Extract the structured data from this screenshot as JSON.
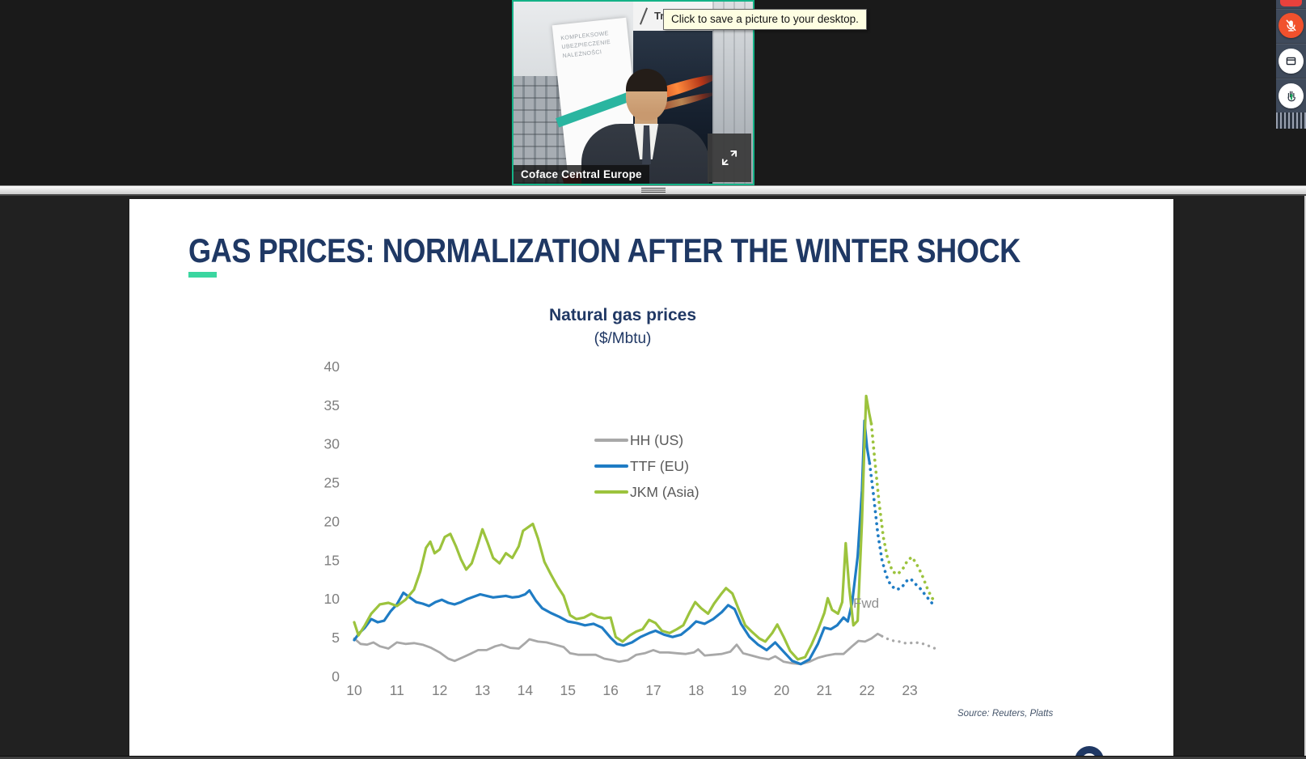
{
  "video": {
    "name_label": "Coface Central Europe",
    "tooltip": "Click to save a picture to your desktop.",
    "poster_heading": "Tra",
    "banner_lines": [
      "KOMPLEKSOWE",
      "UBEZPIECZENIE",
      "NALEŻNOŚCI"
    ],
    "border_color": "#14B287"
  },
  "controls": {
    "mute_color": "#F1512D",
    "raise_hand_arrow_color": "#18A45D"
  },
  "slide": {
    "title": "GAS PRICES: NORMALIZATION AFTER THE WINTER SHOCK",
    "title_color": "#1F3864",
    "accent_color": "#3BD6A0",
    "source": "Source: Reuters, Platts",
    "fwd": "Fwd"
  },
  "chart_data": {
    "type": "line",
    "title": "Natural gas prices",
    "subtitle": "($/Mbtu)",
    "xlabel": "",
    "ylabel": "",
    "ylim": [
      0,
      40
    ],
    "yticks": [
      0,
      5,
      10,
      15,
      20,
      25,
      30,
      35,
      40
    ],
    "xticks": [
      10,
      11,
      12,
      13,
      14,
      15,
      16,
      17,
      18,
      19,
      20,
      21,
      22,
      23
    ],
    "grid": false,
    "legend_position": "center-left",
    "annotation": {
      "text": "Fwd",
      "x": 22.9,
      "y": 9
    },
    "series": [
      {
        "name": "HH (US)",
        "color": "#A8A8A8",
        "width": 2.8,
        "solid": [
          [
            10.0,
            4.9
          ],
          [
            10.15,
            4.2
          ],
          [
            10.3,
            4.1
          ],
          [
            10.45,
            4.4
          ],
          [
            10.6,
            3.9
          ],
          [
            10.8,
            3.6
          ],
          [
            11.0,
            4.4
          ],
          [
            11.2,
            4.2
          ],
          [
            11.4,
            4.3
          ],
          [
            11.6,
            4.1
          ],
          [
            11.8,
            3.7
          ],
          [
            12.0,
            3.1
          ],
          [
            12.2,
            2.3
          ],
          [
            12.35,
            2.0
          ],
          [
            12.55,
            2.5
          ],
          [
            12.75,
            3.0
          ],
          [
            12.9,
            3.4
          ],
          [
            13.1,
            3.4
          ],
          [
            13.3,
            3.9
          ],
          [
            13.45,
            4.1
          ],
          [
            13.65,
            3.7
          ],
          [
            13.85,
            3.6
          ],
          [
            14.0,
            4.3
          ],
          [
            14.1,
            4.8
          ],
          [
            14.3,
            4.5
          ],
          [
            14.5,
            4.4
          ],
          [
            14.7,
            4.1
          ],
          [
            14.9,
            3.8
          ],
          [
            15.05,
            3.0
          ],
          [
            15.25,
            2.8
          ],
          [
            15.45,
            2.8
          ],
          [
            15.65,
            2.8
          ],
          [
            15.85,
            2.3
          ],
          [
            16.05,
            2.1
          ],
          [
            16.2,
            1.9
          ],
          [
            16.4,
            2.1
          ],
          [
            16.6,
            2.8
          ],
          [
            16.8,
            3.0
          ],
          [
            17.0,
            3.4
          ],
          [
            17.15,
            3.1
          ],
          [
            17.35,
            3.1
          ],
          [
            17.55,
            3.0
          ],
          [
            17.75,
            2.9
          ],
          [
            17.95,
            3.1
          ],
          [
            18.05,
            3.5
          ],
          [
            18.2,
            2.7
          ],
          [
            18.4,
            2.8
          ],
          [
            18.6,
            2.9
          ],
          [
            18.8,
            3.2
          ],
          [
            18.95,
            4.1
          ],
          [
            19.1,
            3.0
          ],
          [
            19.3,
            2.7
          ],
          [
            19.5,
            2.4
          ],
          [
            19.7,
            2.2
          ],
          [
            19.85,
            2.6
          ],
          [
            20.05,
            1.9
          ],
          [
            20.25,
            1.7
          ],
          [
            20.45,
            1.6
          ],
          [
            20.65,
            1.9
          ],
          [
            20.85,
            2.4
          ],
          [
            21.05,
            2.7
          ],
          [
            21.25,
            2.9
          ],
          [
            21.45,
            2.9
          ],
          [
            21.65,
            3.9
          ],
          [
            21.8,
            4.6
          ],
          [
            21.95,
            4.5
          ],
          [
            22.1,
            4.9
          ],
          [
            22.25,
            5.5
          ],
          [
            22.35,
            5.2
          ]
        ],
        "forecast": [
          [
            22.35,
            5.2
          ],
          [
            22.5,
            4.8
          ],
          [
            22.62,
            4.6
          ],
          [
            22.75,
            4.5
          ],
          [
            22.88,
            4.3
          ],
          [
            23.0,
            4.3
          ],
          [
            23.12,
            4.4
          ],
          [
            23.25,
            4.3
          ],
          [
            23.38,
            4.1
          ],
          [
            23.5,
            3.8
          ],
          [
            23.6,
            3.6
          ]
        ]
      },
      {
        "name": "TTF (EU)",
        "color": "#1F7CC4",
        "width": 3.2,
        "solid": [
          [
            10.0,
            4.7
          ],
          [
            10.12,
            5.6
          ],
          [
            10.25,
            6.3
          ],
          [
            10.4,
            7.4
          ],
          [
            10.55,
            7.0
          ],
          [
            10.7,
            7.2
          ],
          [
            10.85,
            8.4
          ],
          [
            11.0,
            9.3
          ],
          [
            11.15,
            10.8
          ],
          [
            11.3,
            10.2
          ],
          [
            11.45,
            9.6
          ],
          [
            11.6,
            9.4
          ],
          [
            11.75,
            9.1
          ],
          [
            11.9,
            9.6
          ],
          [
            12.05,
            9.9
          ],
          [
            12.2,
            9.5
          ],
          [
            12.35,
            9.3
          ],
          [
            12.5,
            9.6
          ],
          [
            12.65,
            10.0
          ],
          [
            12.8,
            10.3
          ],
          [
            12.95,
            10.6
          ],
          [
            13.1,
            10.4
          ],
          [
            13.25,
            10.2
          ],
          [
            13.4,
            10.3
          ],
          [
            13.55,
            10.4
          ],
          [
            13.7,
            10.2
          ],
          [
            13.85,
            10.3
          ],
          [
            14.0,
            10.6
          ],
          [
            14.1,
            11.1
          ],
          [
            14.25,
            9.8
          ],
          [
            14.4,
            8.8
          ],
          [
            14.6,
            8.2
          ],
          [
            14.8,
            7.7
          ],
          [
            15.0,
            7.1
          ],
          [
            15.2,
            6.9
          ],
          [
            15.4,
            6.6
          ],
          [
            15.6,
            6.8
          ],
          [
            15.8,
            6.3
          ],
          [
            16.0,
            5.0
          ],
          [
            16.15,
            4.2
          ],
          [
            16.3,
            4.0
          ],
          [
            16.5,
            4.4
          ],
          [
            16.7,
            5.1
          ],
          [
            16.9,
            5.6
          ],
          [
            17.05,
            5.9
          ],
          [
            17.25,
            5.4
          ],
          [
            17.45,
            5.1
          ],
          [
            17.65,
            5.4
          ],
          [
            17.85,
            6.3
          ],
          [
            18.0,
            7.1
          ],
          [
            18.2,
            6.8
          ],
          [
            18.4,
            7.4
          ],
          [
            18.6,
            8.3
          ],
          [
            18.75,
            9.2
          ],
          [
            18.9,
            8.7
          ],
          [
            19.05,
            6.8
          ],
          [
            19.25,
            5.1
          ],
          [
            19.45,
            4.1
          ],
          [
            19.65,
            3.4
          ],
          [
            19.85,
            4.4
          ],
          [
            20.05,
            3.2
          ],
          [
            20.25,
            2.0
          ],
          [
            20.45,
            1.6
          ],
          [
            20.65,
            2.2
          ],
          [
            20.85,
            4.2
          ],
          [
            21.0,
            6.3
          ],
          [
            21.15,
            6.1
          ],
          [
            21.3,
            6.6
          ],
          [
            21.45,
            7.6
          ],
          [
            21.55,
            7.1
          ],
          [
            21.65,
            9.5
          ],
          [
            21.78,
            15.5
          ],
          [
            21.88,
            24.0
          ],
          [
            21.94,
            33.0
          ],
          [
            22.0,
            29.5
          ],
          [
            22.06,
            27.5
          ]
        ],
        "forecast": [
          [
            22.06,
            27.5
          ],
          [
            22.15,
            23.5
          ],
          [
            22.25,
            18.5
          ],
          [
            22.35,
            15.0
          ],
          [
            22.45,
            13.0
          ],
          [
            22.55,
            11.8
          ],
          [
            22.68,
            11.2
          ],
          [
            22.8,
            11.4
          ],
          [
            22.92,
            12.3
          ],
          [
            23.02,
            12.6
          ],
          [
            23.12,
            12.0
          ],
          [
            23.25,
            11.3
          ],
          [
            23.38,
            10.4
          ],
          [
            23.5,
            9.6
          ],
          [
            23.58,
            9.0
          ]
        ]
      },
      {
        "name": "JKM (Asia)",
        "color": "#9CC33D",
        "width": 3.2,
        "solid": [
          [
            10.0,
            7.0
          ],
          [
            10.1,
            5.3
          ],
          [
            10.25,
            6.6
          ],
          [
            10.4,
            8.1
          ],
          [
            10.6,
            9.3
          ],
          [
            10.8,
            9.5
          ],
          [
            11.0,
            9.1
          ],
          [
            11.2,
            9.9
          ],
          [
            11.4,
            11.2
          ],
          [
            11.55,
            13.6
          ],
          [
            11.68,
            16.6
          ],
          [
            11.78,
            17.4
          ],
          [
            11.88,
            15.9
          ],
          [
            12.0,
            16.4
          ],
          [
            12.12,
            18.0
          ],
          [
            12.25,
            18.4
          ],
          [
            12.38,
            16.8
          ],
          [
            12.5,
            15.1
          ],
          [
            12.62,
            13.8
          ],
          [
            12.75,
            14.6
          ],
          [
            12.88,
            16.8
          ],
          [
            13.0,
            19.0
          ],
          [
            13.12,
            17.3
          ],
          [
            13.25,
            15.3
          ],
          [
            13.4,
            14.6
          ],
          [
            13.55,
            15.9
          ],
          [
            13.7,
            15.3
          ],
          [
            13.85,
            16.8
          ],
          [
            13.95,
            18.8
          ],
          [
            14.08,
            19.3
          ],
          [
            14.18,
            19.7
          ],
          [
            14.3,
            17.8
          ],
          [
            14.45,
            14.8
          ],
          [
            14.6,
            13.2
          ],
          [
            14.75,
            11.7
          ],
          [
            14.9,
            10.4
          ],
          [
            15.05,
            7.9
          ],
          [
            15.2,
            7.4
          ],
          [
            15.38,
            7.6
          ],
          [
            15.55,
            8.1
          ],
          [
            15.7,
            7.7
          ],
          [
            15.85,
            7.5
          ],
          [
            16.0,
            7.6
          ],
          [
            16.12,
            5.1
          ],
          [
            16.28,
            4.5
          ],
          [
            16.45,
            5.3
          ],
          [
            16.6,
            5.8
          ],
          [
            16.75,
            6.1
          ],
          [
            16.9,
            7.3
          ],
          [
            17.05,
            6.9
          ],
          [
            17.2,
            5.9
          ],
          [
            17.38,
            5.6
          ],
          [
            17.55,
            6.1
          ],
          [
            17.7,
            6.6
          ],
          [
            17.85,
            8.3
          ],
          [
            17.98,
            9.6
          ],
          [
            18.12,
            8.8
          ],
          [
            18.28,
            8.1
          ],
          [
            18.42,
            9.4
          ],
          [
            18.58,
            10.6
          ],
          [
            18.7,
            11.4
          ],
          [
            18.85,
            10.7
          ],
          [
            19.0,
            8.6
          ],
          [
            19.15,
            6.6
          ],
          [
            19.3,
            5.8
          ],
          [
            19.48,
            4.9
          ],
          [
            19.62,
            4.5
          ],
          [
            19.78,
            5.6
          ],
          [
            19.9,
            6.7
          ],
          [
            20.05,
            5.1
          ],
          [
            20.2,
            3.3
          ],
          [
            20.38,
            2.2
          ],
          [
            20.55,
            2.5
          ],
          [
            20.7,
            4.1
          ],
          [
            20.85,
            6.0
          ],
          [
            21.0,
            8.2
          ],
          [
            21.08,
            10.1
          ],
          [
            21.18,
            8.6
          ],
          [
            21.32,
            8.1
          ],
          [
            21.42,
            9.6
          ],
          [
            21.5,
            17.2
          ],
          [
            21.58,
            11.6
          ],
          [
            21.68,
            6.6
          ],
          [
            21.78,
            7.2
          ],
          [
            21.88,
            20.0
          ],
          [
            21.94,
            30.0
          ],
          [
            21.98,
            36.2
          ],
          [
            22.05,
            34.0
          ],
          [
            22.1,
            32.6
          ]
        ],
        "forecast": [
          [
            22.1,
            32.6
          ],
          [
            22.18,
            28.0
          ],
          [
            22.28,
            22.5
          ],
          [
            22.38,
            18.0
          ],
          [
            22.48,
            15.2
          ],
          [
            22.6,
            13.5
          ],
          [
            22.72,
            13.2
          ],
          [
            22.85,
            14.0
          ],
          [
            22.95,
            15.0
          ],
          [
            23.05,
            15.4
          ],
          [
            23.15,
            14.6
          ],
          [
            23.28,
            13.2
          ],
          [
            23.4,
            11.5
          ],
          [
            23.5,
            10.3
          ],
          [
            23.58,
            9.7
          ]
        ]
      }
    ]
  }
}
